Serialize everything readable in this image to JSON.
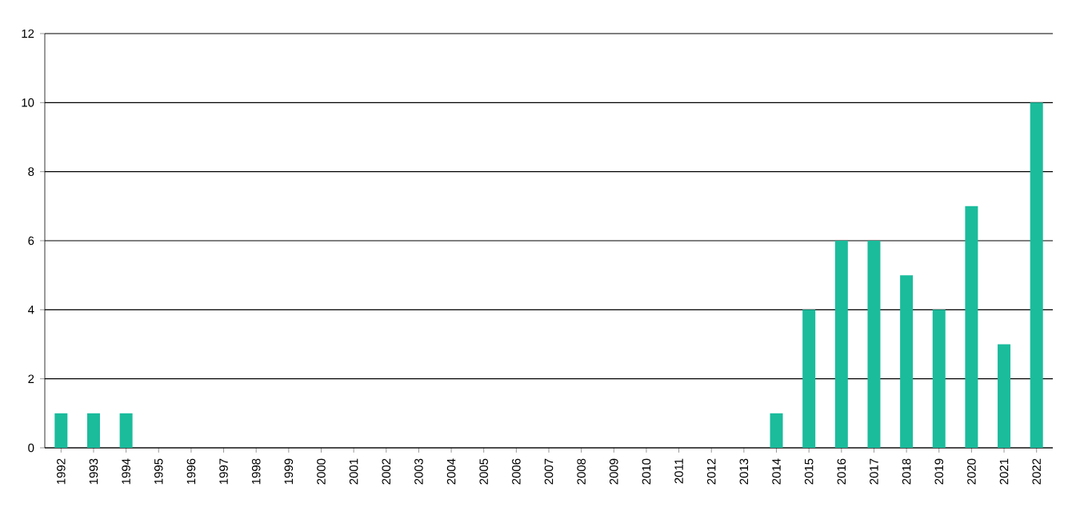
{
  "chart_data": {
    "type": "bar",
    "categories": [
      "1992",
      "1993",
      "1994",
      "1995",
      "1996",
      "1997",
      "1998",
      "1999",
      "2000",
      "2001",
      "2002",
      "2003",
      "2004",
      "2005",
      "2006",
      "2007",
      "2008",
      "2009",
      "2010",
      "2011",
      "2012",
      "2013",
      "2014",
      "2015",
      "2016",
      "2017",
      "2018",
      "2019",
      "2020",
      "2021",
      "2022"
    ],
    "values": [
      1,
      1,
      1,
      0,
      0,
      0,
      0,
      0,
      0,
      0,
      0,
      0,
      0,
      0,
      0,
      0,
      0,
      0,
      0,
      0,
      0,
      0,
      1,
      4,
      6,
      6,
      5,
      4,
      7,
      3,
      10
    ],
    "color": "#1abc9c",
    "ylim": [
      0,
      12
    ],
    "yticks": [
      0,
      2,
      4,
      6,
      8,
      10,
      12
    ],
    "grid": "y"
  }
}
